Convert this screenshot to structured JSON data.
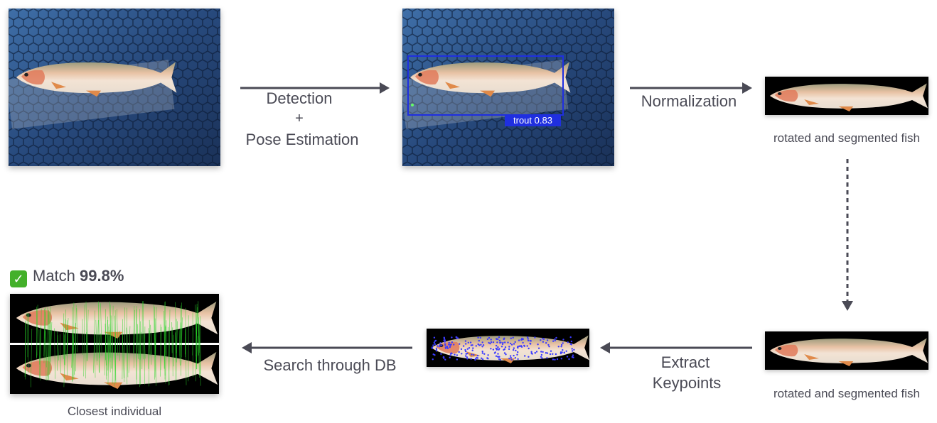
{
  "steps": {
    "detection": {
      "line1": "Detection",
      "plus": "+",
      "line2": "Pose Estimation"
    },
    "normalization": {
      "label": "Normalization"
    },
    "extract": {
      "line1": "Extract",
      "line2": "Keypoints"
    },
    "search": {
      "label": "Search through DB"
    }
  },
  "detection_box": {
    "class_label": "trout 0.83"
  },
  "captions": {
    "normalized": "rotated and segmented fish",
    "normalized_copy": "rotated and segmented fish",
    "closest": "Closest individual"
  },
  "match": {
    "prefix": "Match",
    "value": "99.8%"
  },
  "colors": {
    "arrow": "#4a4a55",
    "bbox": "#1f2fe0",
    "keypoints": "#3b3bff",
    "match_lines": "#29d629",
    "check": "#43b02a"
  },
  "icons": {
    "match": "check-mark-icon"
  }
}
